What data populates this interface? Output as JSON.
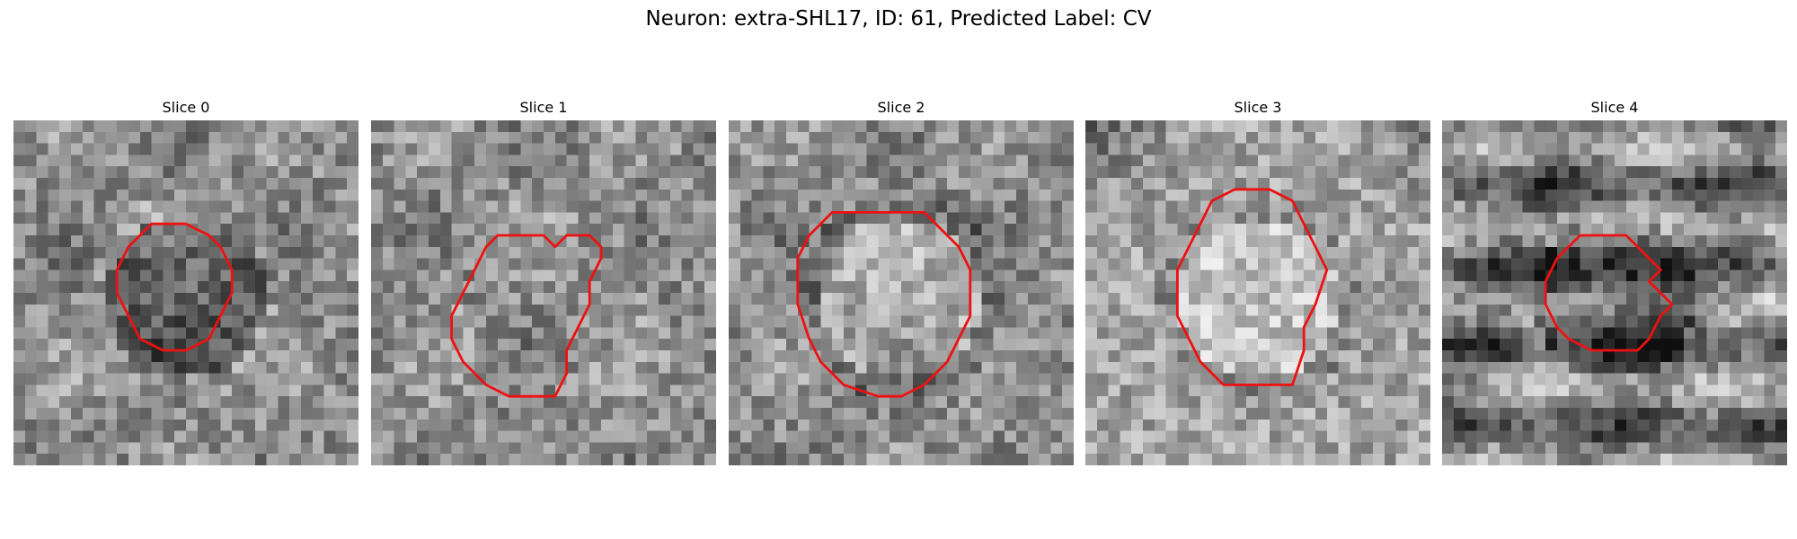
{
  "figure": {
    "title": "Neuron: extra-SHL17, ID: 61, Predicted Label: CV"
  },
  "panels": [
    {
      "title": "Slice 0",
      "seed": 11,
      "center_tone": "dark",
      "bg": "mixed"
    },
    {
      "title": "Slice 1",
      "seed": 23,
      "center_tone": "mid",
      "bg": "mixed"
    },
    {
      "title": "Slice 2",
      "seed": 37,
      "center_tone": "light",
      "bg": "mixed"
    },
    {
      "title": "Slice 3",
      "seed": 53,
      "center_tone": "light",
      "bg": "light"
    },
    {
      "title": "Slice 4",
      "seed": 71,
      "center_tone": "dark",
      "bg": "banded"
    }
  ],
  "colors": {
    "contour": "#ee1111"
  }
}
